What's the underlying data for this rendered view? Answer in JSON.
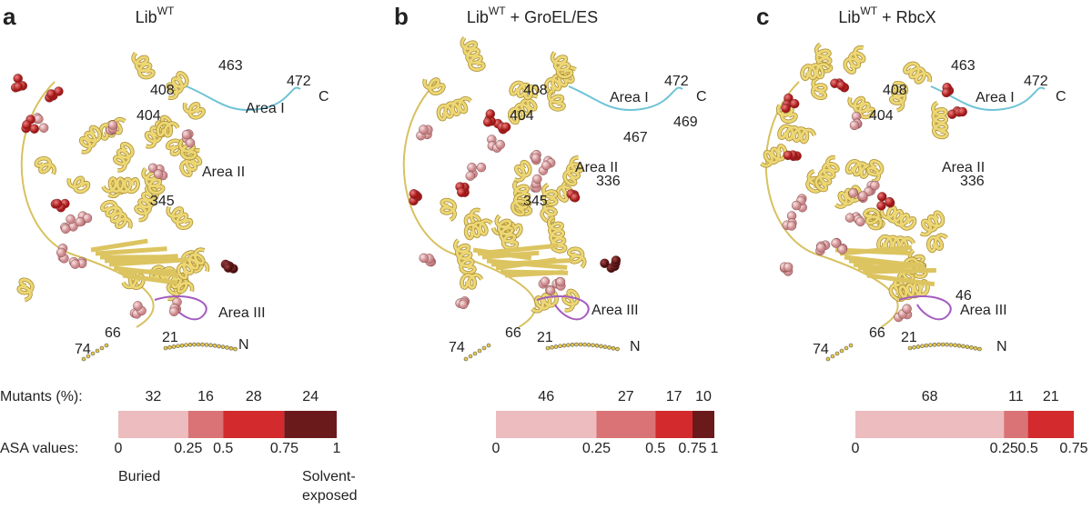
{
  "panels": [
    {
      "letter": "a",
      "title": {
        "base": "Lib",
        "sup": "WT",
        "suffix": ""
      },
      "labels": [
        {
          "text": "463",
          "color": "#222"
        },
        {
          "text": "472",
          "color": "#222"
        },
        {
          "text": "C",
          "color": "#222"
        },
        {
          "text": "408",
          "color": "#222"
        },
        {
          "text": "404",
          "color": "#222"
        },
        {
          "text": "Area I",
          "color": "#6fc3d6"
        },
        {
          "text": "Area II",
          "color": "#6fc3d6"
        },
        {
          "text": "345",
          "color": "#222"
        },
        {
          "text": "Area III",
          "color": "#a45bc0"
        },
        {
          "text": "74",
          "color": "#222"
        },
        {
          "text": "66",
          "color": "#222"
        },
        {
          "text": "21",
          "color": "#222"
        },
        {
          "text": "N",
          "color": "#222"
        }
      ],
      "segments": [
        {
          "value": 32,
          "color": "#ecbcbe"
        },
        {
          "value": 16,
          "color": "#d97375"
        },
        {
          "value": 28,
          "color": "#d32a2d"
        },
        {
          "value": 24,
          "color": "#6b1a1c"
        }
      ],
      "asa_ticks": [
        0,
        0.25,
        0.5,
        0.75,
        1
      ]
    },
    {
      "letter": "b",
      "title": {
        "base": "Lib",
        "sup": "WT",
        "suffix": " + GroEL/ES"
      },
      "labels": [
        {
          "text": "472",
          "color": "#222"
        },
        {
          "text": "C",
          "color": "#222"
        },
        {
          "text": "408",
          "color": "#222"
        },
        {
          "text": "404",
          "color": "#222"
        },
        {
          "text": "Area I",
          "color": "#6fc3d6"
        },
        {
          "text": "469",
          "color": "#222"
        },
        {
          "text": "467",
          "color": "#222"
        },
        {
          "text": "Area II",
          "color": "#6fc3d6"
        },
        {
          "text": "336",
          "color": "#222"
        },
        {
          "text": "345",
          "color": "#222"
        },
        {
          "text": "Area III",
          "color": "#a45bc0"
        },
        {
          "text": "74",
          "color": "#222"
        },
        {
          "text": "66",
          "color": "#222"
        },
        {
          "text": "21",
          "color": "#222"
        },
        {
          "text": "N",
          "color": "#222"
        }
      ],
      "segments": [
        {
          "value": 46,
          "color": "#ecbcbe"
        },
        {
          "value": 27,
          "color": "#d97375"
        },
        {
          "value": 17,
          "color": "#d32a2d"
        },
        {
          "value": 10,
          "color": "#6b1a1c"
        }
      ],
      "asa_ticks": [
        0,
        0.25,
        0.5,
        0.75,
        1
      ]
    },
    {
      "letter": "c",
      "title": {
        "base": "Lib",
        "sup": "WT",
        "suffix": " + RbcX"
      },
      "labels": [
        {
          "text": "463",
          "color": "#222"
        },
        {
          "text": "472",
          "color": "#222"
        },
        {
          "text": "C",
          "color": "#222"
        },
        {
          "text": "408",
          "color": "#222"
        },
        {
          "text": "404",
          "color": "#222"
        },
        {
          "text": "Area I",
          "color": "#6fc3d6"
        },
        {
          "text": "Area II",
          "color": "#6fc3d6"
        },
        {
          "text": "336",
          "color": "#222"
        },
        {
          "text": "46",
          "color": "#222"
        },
        {
          "text": "Area III",
          "color": "#a45bc0"
        },
        {
          "text": "74",
          "color": "#222"
        },
        {
          "text": "66",
          "color": "#222"
        },
        {
          "text": "21",
          "color": "#222"
        },
        {
          "text": "N",
          "color": "#222"
        }
      ],
      "segments": [
        {
          "value": 68,
          "color": "#ecbcbe"
        },
        {
          "value": 11,
          "color": "#d97375"
        },
        {
          "value": 21,
          "color": "#d32a2d"
        }
      ],
      "asa_ticks": [
        0,
        0.25,
        0.5,
        0.75
      ]
    }
  ],
  "mutants_label": "Mutants (%):",
  "asa_label": "ASA values:",
  "buried_label": "Buried",
  "exposed_label": [
    "Solvent-",
    "exposed"
  ]
}
